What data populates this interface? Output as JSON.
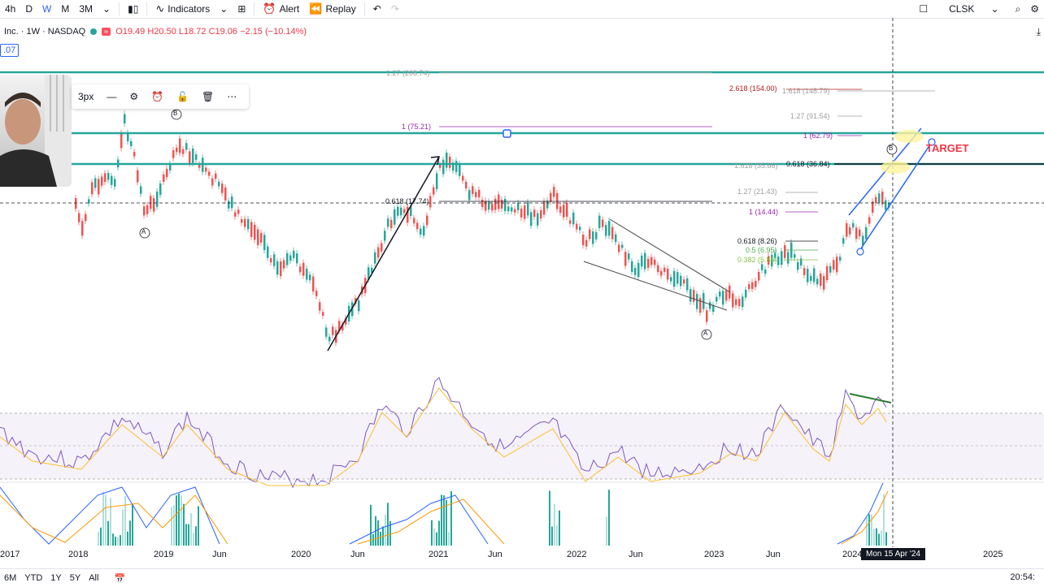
{
  "toolbar": {
    "intervals": [
      "4h",
      "D",
      "W",
      "M",
      "3M"
    ],
    "active_interval": "W",
    "indicators_label": "Indicators",
    "alert_label": "Alert",
    "replay_label": "Replay",
    "symbol": "CLSK"
  },
  "legend": {
    "title": "Inc. · 1W · NASDAQ",
    "ohlc": "O19.49 H20.50 L18.72 C19.06 −2.15 (−10.14%)",
    "value_box": ".07"
  },
  "float_toolbar": {
    "width_label": "3px"
  },
  "fib_levels": [
    {
      "label": "1.27 (208.74)",
      "color": "#9e9e9e"
    },
    {
      "label": "2.618 (154.00)",
      "color": "#b71c1c"
    },
    {
      "label": "1.618 (148.79)",
      "color": "#9e9e9e"
    },
    {
      "label": "1.27 (91.54)",
      "color": "#9e9e9e"
    },
    {
      "label": "1 (75.21)",
      "color": "#9c27b0"
    },
    {
      "label": "1 (62.79)",
      "color": "#9c27b0"
    },
    {
      "label": "0.618 (36.84)",
      "color": "#131722"
    },
    {
      "label": "1.618 (35.66)",
      "color": "#9e9e9e"
    },
    {
      "label": "0.618 (17.74)",
      "color": "#131722"
    },
    {
      "label": "1.27 (21.43)",
      "color": "#9e9e9e"
    },
    {
      "label": "1 (14.44)",
      "color": "#9c27b0"
    },
    {
      "label": "0.618 (8.26)",
      "color": "#131722"
    },
    {
      "label": "0.5 (6.95)",
      "color": "#4caf50"
    },
    {
      "label": "0.382 (5.85)",
      "color": "#8bc34a"
    }
  ],
  "wave_labels": [
    "B",
    "A",
    "A",
    "B"
  ],
  "target_label": "TARGET",
  "x_axis": [
    "2017",
    "2018",
    "2019",
    "Jun",
    "2020",
    "Jun",
    "2021",
    "Jun",
    "2022",
    "Jun",
    "2023",
    "Jun",
    "2024",
    "2025"
  ],
  "crosshair_date": "Mon 15 Apr '24",
  "ranges": [
    "6M",
    "YTD",
    "1Y",
    "5Y",
    "All"
  ],
  "clock": "20:54:",
  "colors": {
    "accent": "#2962ff",
    "teal": "#26a69a",
    "up": "#26a69a",
    "down": "#f23645",
    "rsi": "#7e57c2",
    "rsi_ma": "#fbc02d"
  }
}
